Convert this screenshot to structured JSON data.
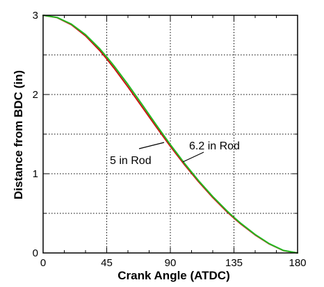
{
  "chart_data": {
    "type": "line",
    "title": "",
    "xlabel": "Crank Angle (ATDC)",
    "ylabel": "Distance from BDC (in)",
    "xlim": [
      0,
      180
    ],
    "ylim": [
      0,
      3
    ],
    "xticks": [
      0,
      45,
      90,
      135,
      180
    ],
    "yticks": [
      0,
      1,
      2,
      3
    ],
    "x_tick_labels": [
      "0",
      "45",
      "90",
      "135",
      "180"
    ],
    "y_tick_labels": [
      "0",
      "1",
      "2",
      "3"
    ],
    "grid": true,
    "legend": "none",
    "x": [
      0,
      10,
      20,
      30,
      40,
      45,
      50,
      60,
      70,
      80,
      90,
      100,
      110,
      120,
      130,
      135,
      140,
      150,
      160,
      170,
      180
    ],
    "series": [
      {
        "name": "5 in Rod",
        "color": "#cc1111",
        "values": [
          3.0,
          2.97,
          2.881,
          2.741,
          2.556,
          2.45,
          2.337,
          2.096,
          1.844,
          1.592,
          1.346,
          1.114,
          0.898,
          0.7,
          0.521,
          0.44,
          0.363,
          0.227,
          0.113,
          0.03,
          0.0
        ]
      },
      {
        "name": "6.2 in Rod",
        "color": "#22bb22",
        "values": [
          3.0,
          2.972,
          2.889,
          2.756,
          2.579,
          2.475,
          2.365,
          2.127,
          1.874,
          1.618,
          1.368,
          1.132,
          0.912,
          0.712,
          0.532,
          0.45,
          0.372,
          0.233,
          0.117,
          0.032,
          0.0
        ]
      }
    ],
    "annotations": [
      {
        "text": "5 in Rod",
        "series": "5 in Rod"
      },
      {
        "text": "6.2 in Rod",
        "series": "6.2 in Rod"
      }
    ]
  }
}
